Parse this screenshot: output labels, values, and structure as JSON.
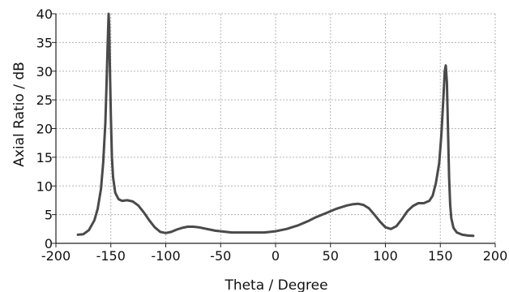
{
  "chart_data": {
    "type": "line",
    "title": "",
    "xlabel": "Theta / Degree",
    "ylabel": "Axial Ratio / dB",
    "xlim": [
      -200,
      200
    ],
    "ylim": [
      0,
      40
    ],
    "x_ticks": [
      -200,
      -150,
      -100,
      -50,
      0,
      50,
      100,
      150,
      200
    ],
    "y_ticks": [
      0,
      5,
      10,
      15,
      20,
      25,
      30,
      35,
      40
    ],
    "grid": true,
    "line_color": "#4a4a4a",
    "grid_color": "#b5b5b5",
    "series": [
      {
        "x": [
          -180,
          -175,
          -170,
          -165,
          -162,
          -159,
          -157,
          -155,
          -154,
          -153,
          -152,
          -151.5,
          -151,
          -150,
          -149,
          -148,
          -146,
          -143,
          -140,
          -135,
          -130,
          -125,
          -120,
          -115,
          -110,
          -105,
          -100,
          -95,
          -90,
          -85,
          -80,
          -75,
          -70,
          -65,
          -60,
          -55,
          -50,
          -45,
          -40,
          -35,
          -30,
          -25,
          -20,
          -15,
          -10,
          -5,
          0,
          5,
          10,
          15,
          20,
          25,
          30,
          35,
          40,
          45,
          50,
          55,
          60,
          65,
          70,
          75,
          80,
          85,
          90,
          95,
          100,
          105,
          110,
          115,
          120,
          125,
          130,
          135,
          140,
          143,
          146,
          149,
          151,
          153,
          154,
          155,
          156,
          157,
          158,
          159,
          160,
          162,
          165,
          170,
          175,
          180
        ],
        "y": [
          1.5,
          1.6,
          2.3,
          4.0,
          6.0,
          9.5,
          14.0,
          21.0,
          27.0,
          34.0,
          40.0,
          38.0,
          32.0,
          22.0,
          15.0,
          11.5,
          8.8,
          7.7,
          7.4,
          7.5,
          7.3,
          6.6,
          5.4,
          4.0,
          2.8,
          2.0,
          1.8,
          2.0,
          2.4,
          2.7,
          2.9,
          2.9,
          2.8,
          2.6,
          2.4,
          2.2,
          2.1,
          2.0,
          1.9,
          1.9,
          1.9,
          1.9,
          1.9,
          1.9,
          1.9,
          2.0,
          2.1,
          2.3,
          2.5,
          2.8,
          3.1,
          3.5,
          3.9,
          4.4,
          4.8,
          5.2,
          5.6,
          6.0,
          6.3,
          6.6,
          6.8,
          6.9,
          6.7,
          6.1,
          5.0,
          3.8,
          2.8,
          2.5,
          3.0,
          4.2,
          5.6,
          6.5,
          7.0,
          7.0,
          7.4,
          8.3,
          10.5,
          14.0,
          19.0,
          26.0,
          30.0,
          31.0,
          28.0,
          20.0,
          11.5,
          6.8,
          4.4,
          2.7,
          1.9,
          1.5,
          1.35,
          1.3
        ]
      }
    ]
  }
}
